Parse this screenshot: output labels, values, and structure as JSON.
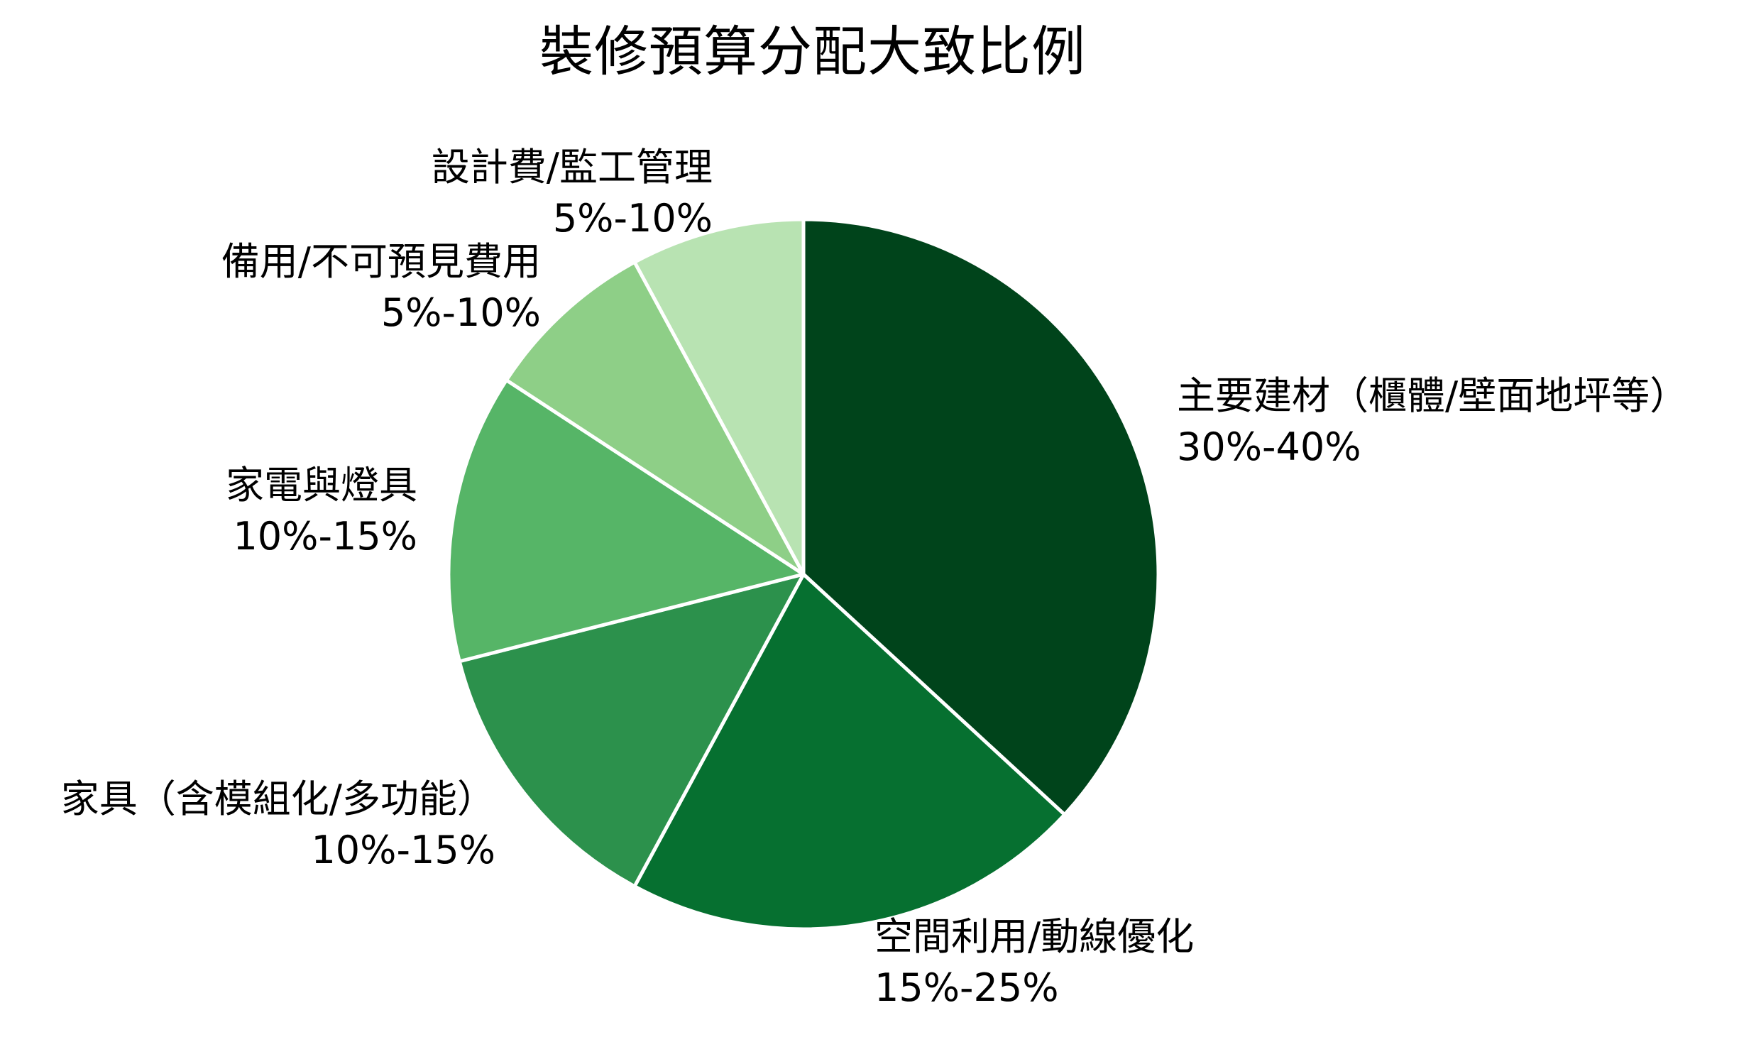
{
  "chart_data": {
    "type": "pie",
    "title": "裝修預算分配大致比例",
    "start_angle_deg": 90,
    "direction": "clockwise",
    "categories": [
      "主要建材（櫃體/壁面地坪等）",
      "空間利用/動線優化",
      "家具（含模組化/多功能）",
      "家電與燈具",
      "備用/不可預見費用",
      "設計費/監工管理"
    ],
    "range_labels": [
      "30%-40%",
      "15%-25%",
      "10%-15%",
      "10%-15%",
      "5%-10%",
      "5%-10%"
    ],
    "values": [
      35,
      20,
      12.5,
      12.5,
      7.5,
      7.5
    ],
    "colors": [
      "#00441b",
      "#067030",
      "#2c914c",
      "#56b567",
      "#8ecf87",
      "#b8e3b2"
    ],
    "edge_color": "#ffffff",
    "legend": "none"
  },
  "title": "裝修預算分配大致比例",
  "slices": [
    {
      "name": "主要建材（櫃體/壁面地坪等）",
      "range": "30%-40%"
    },
    {
      "name": "空間利用/動線優化",
      "range": "15%-25%"
    },
    {
      "name": "家具（含模組化/多功能）",
      "range": "10%-15%"
    },
    {
      "name": "家電與燈具",
      "range": "10%-15%"
    },
    {
      "name": "備用/不可預見費用",
      "range": "5%-10%"
    },
    {
      "name": "設計費/監工管理",
      "range": "5%-10%"
    }
  ]
}
